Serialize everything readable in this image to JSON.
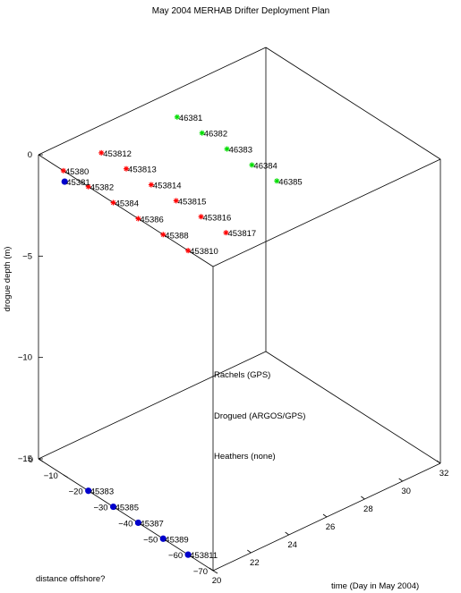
{
  "chart_data": {
    "type": "scatter",
    "title": "May 2004 MERHAB Drifter Deployment Plan",
    "xlabel": "time (Day in May 2004)",
    "ylabel": "distance offshore?",
    "zlabel": "drogue depth (m)",
    "xlim": [
      20,
      32
    ],
    "ylim": [
      -70,
      0
    ],
    "zlim": [
      -15,
      0
    ],
    "x_ticks": [
      "20",
      "22",
      "24",
      "26",
      "28",
      "30",
      "32"
    ],
    "y_ticks": [
      "0",
      "−10",
      "−20",
      "−30",
      "−40",
      "−50",
      "−60",
      "−70"
    ],
    "z_ticks": [
      "0",
      "−5",
      "−10",
      "−15"
    ],
    "legend": [
      {
        "label": "Rachels (GPS)",
        "color": "#ff0000"
      },
      {
        "label": "Drogued (ARGOS/GPS)",
        "color": "#0000cc"
      },
      {
        "label": "Heathers (none)",
        "color": "#00dd00"
      }
    ],
    "series": [
      {
        "name": "Rachels (GPS)",
        "color": "#ff0000",
        "marker": "star",
        "points": [
          {
            "label": "45380",
            "x": 20,
            "y": -10,
            "z": 0
          },
          {
            "label": "45382",
            "x": 20,
            "y": -20,
            "z": 0
          },
          {
            "label": "45384",
            "x": 20,
            "y": -30,
            "z": 0
          },
          {
            "label": "45386",
            "x": 20,
            "y": -40,
            "z": 0
          },
          {
            "label": "45388",
            "x": 20,
            "y": -50,
            "z": 0
          },
          {
            "label": "453810",
            "x": 20,
            "y": -60,
            "z": 0
          },
          {
            "label": "453812",
            "x": 22,
            "y": -10,
            "z": 0
          },
          {
            "label": "453813",
            "x": 22,
            "y": -20,
            "z": 0
          },
          {
            "label": "453814",
            "x": 22,
            "y": -30,
            "z": 0
          },
          {
            "label": "453815",
            "x": 22,
            "y": -40,
            "z": 0
          },
          {
            "label": "453816",
            "x": 22,
            "y": -50,
            "z": 0
          },
          {
            "label": "453817",
            "x": 22,
            "y": -60,
            "z": 0
          }
        ]
      },
      {
        "name": "Drogued (ARGOS/GPS)",
        "color": "#0000cc",
        "marker": "circle",
        "points": [
          {
            "label": "45381",
            "x": 20,
            "y": -10.5,
            "z": -0.5
          },
          {
            "label": "45383",
            "x": 20,
            "y": -20,
            "z": -15
          },
          {
            "label": "45385",
            "x": 20,
            "y": -30,
            "z": -15
          },
          {
            "label": "45387",
            "x": 20,
            "y": -40,
            "z": -15
          },
          {
            "label": "45389",
            "x": 20,
            "y": -50,
            "z": -15
          },
          {
            "label": "453811",
            "x": 20,
            "y": -60,
            "z": -15
          }
        ]
      },
      {
        "name": "Heathers (none)",
        "color": "#00dd00",
        "marker": "star",
        "points": [
          {
            "label": "46381",
            "x": 26,
            "y": -10,
            "z": 0
          },
          {
            "label": "46382",
            "x": 26,
            "y": -20,
            "z": 0
          },
          {
            "label": "46383",
            "x": 26,
            "y": -30,
            "z": 0
          },
          {
            "label": "46384",
            "x": 26,
            "y": -40,
            "z": 0
          },
          {
            "label": "46385",
            "x": 26,
            "y": -50,
            "z": 0
          }
        ]
      }
    ]
  }
}
